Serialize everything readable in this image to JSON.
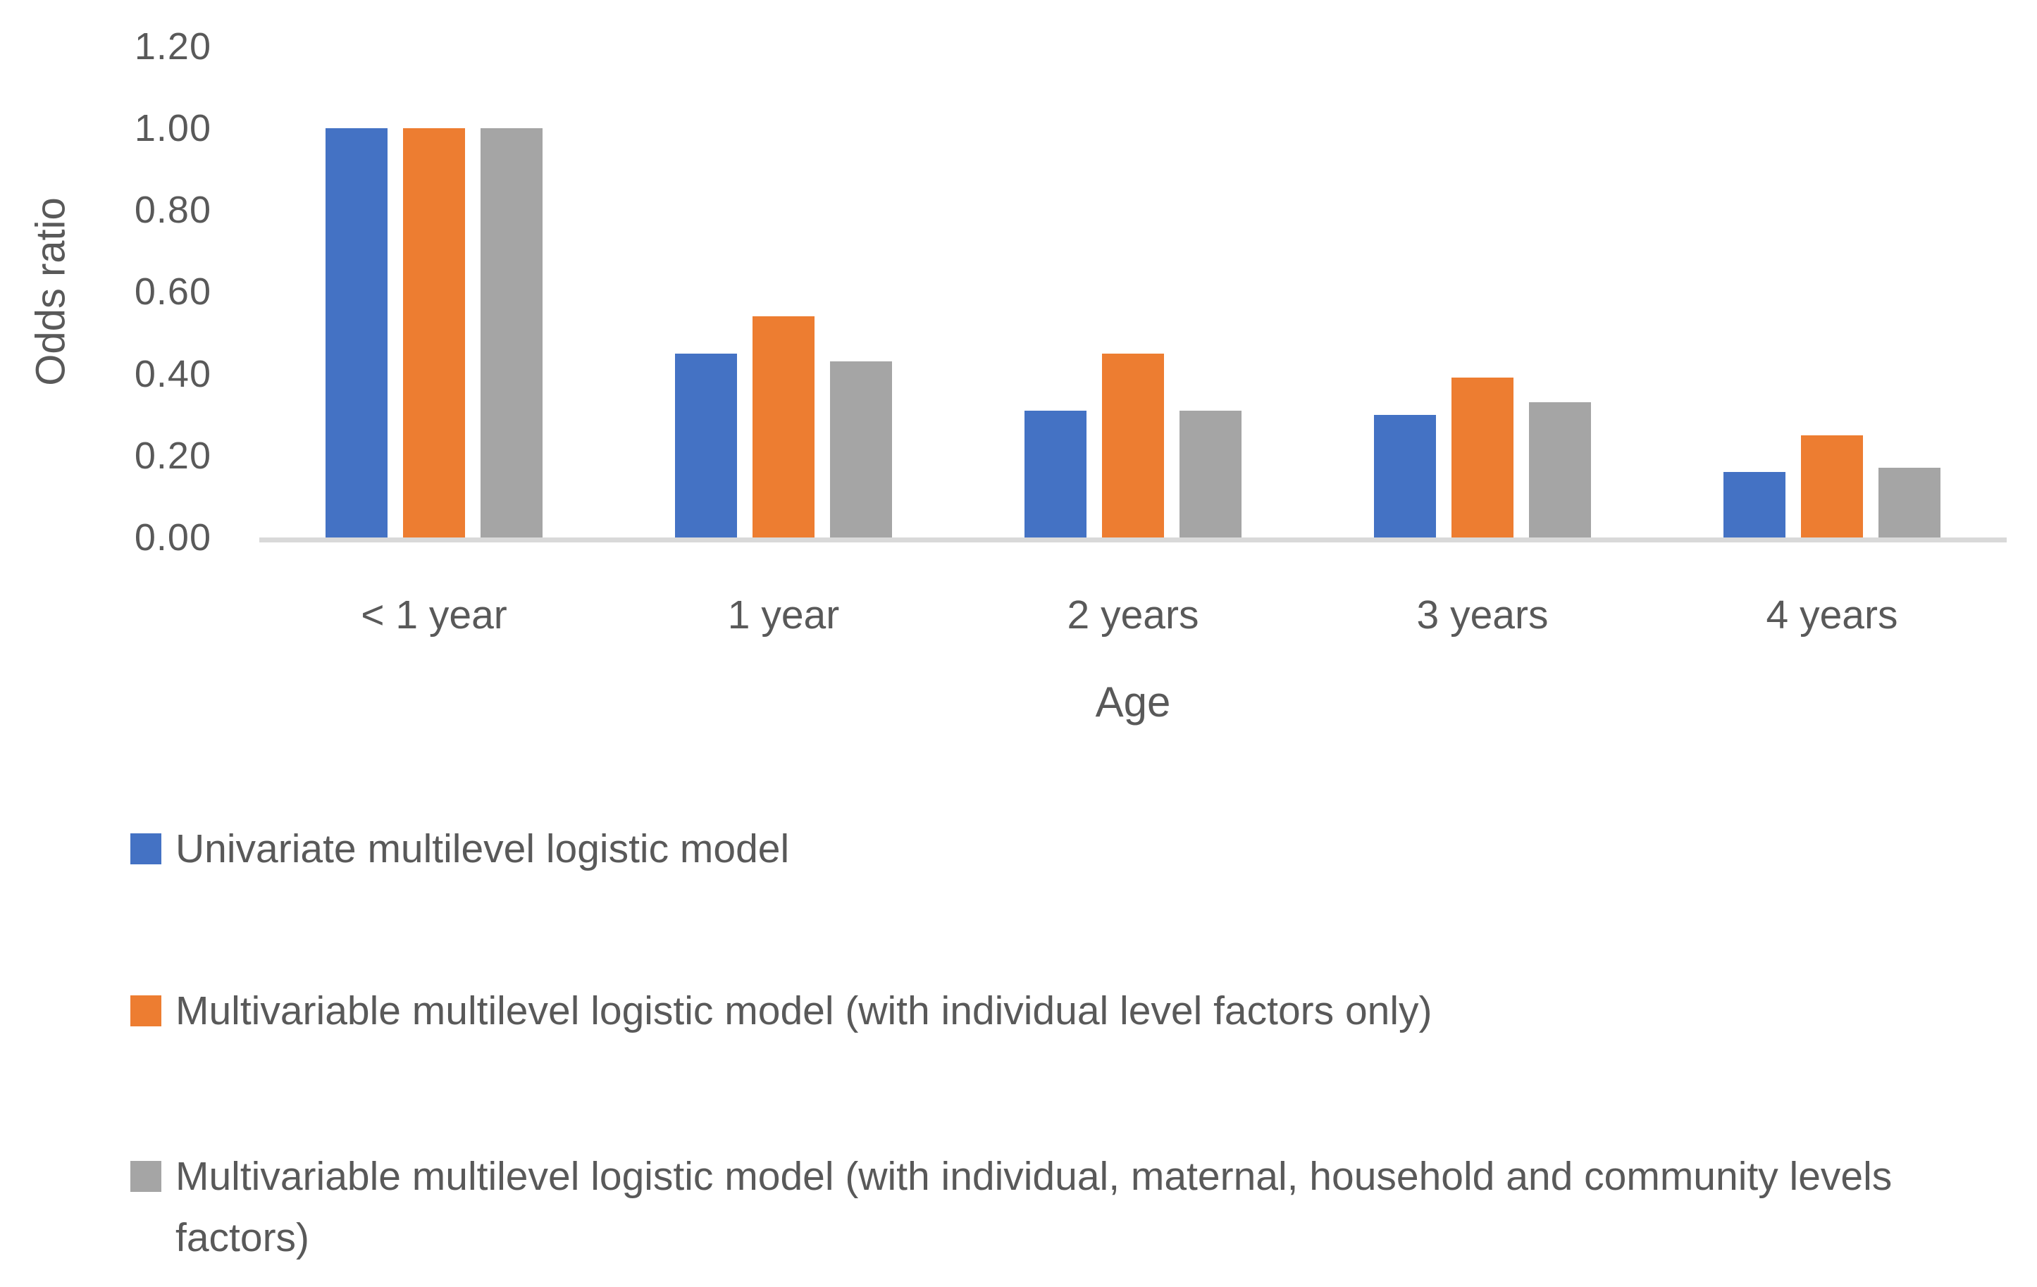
{
  "chart_data": {
    "type": "bar",
    "title": "",
    "categories": [
      "< 1 year",
      "1 year",
      "2 years",
      "3 years",
      "4 years"
    ],
    "series": [
      {
        "name": "Univariate multilevel logistic model",
        "color": "#4472C4",
        "values": [
          1.0,
          0.45,
          0.31,
          0.3,
          0.16
        ]
      },
      {
        "name": "Multivariable multilevel logistic model (with individual level factors only)",
        "color": "#ED7D31",
        "values": [
          1.0,
          0.54,
          0.45,
          0.39,
          0.25
        ]
      },
      {
        "name": "Multivariable multilevel logistic model (with individual, maternal, household and community levels factors)",
        "color": "#A5A5A5",
        "values": [
          1.0,
          0.43,
          0.31,
          0.33,
          0.17
        ]
      }
    ],
    "xlabel": "Age",
    "ylabel": "Odds ratio",
    "ylim": [
      0,
      1.2
    ],
    "ytick_step": 0.2,
    "ytick_labels": [
      "0.00",
      "0.20",
      "0.40",
      "0.60",
      "0.80",
      "1.00",
      "1.20"
    ],
    "grid": false,
    "legend_position": "bottom-left"
  },
  "colors": {
    "axis_line": "#D9D9D9",
    "text": "#595959"
  }
}
